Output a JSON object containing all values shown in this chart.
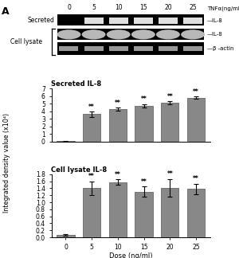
{
  "panel_label": "A",
  "gel_label_top": "TNFα(ng/ml)",
  "gel_doses": [
    "0",
    "5",
    "10",
    "15",
    "20",
    "25"
  ],
  "gel_row_labels_right": [
    "IL-8",
    "IL-8",
    "β -actin"
  ],
  "bar_color": "#888888",
  "bar_edge_color": "#555555",
  "secreted_title": "Secreted IL-8",
  "secreted_categories": [
    0,
    5,
    10,
    15,
    20,
    25
  ],
  "secreted_values": [
    0.05,
    3.6,
    4.3,
    4.7,
    5.1,
    5.8
  ],
  "secreted_errors": [
    0.05,
    0.35,
    0.2,
    0.25,
    0.2,
    0.18
  ],
  "secreted_ylim": [
    0,
    7
  ],
  "secreted_yticks": [
    0,
    1,
    2,
    3,
    4,
    5,
    6,
    7
  ],
  "lysate_title": "Cell lysate IL-8",
  "lysate_categories": [
    0,
    5,
    10,
    15,
    20,
    25
  ],
  "lysate_values": [
    0.07,
    1.4,
    1.58,
    1.3,
    1.42,
    1.38
  ],
  "lysate_errors": [
    0.03,
    0.2,
    0.08,
    0.15,
    0.25,
    0.15
  ],
  "lysate_ylim": [
    0,
    1.8
  ],
  "lysate_yticks": [
    0,
    0.2,
    0.4,
    0.6,
    0.8,
    1.0,
    1.2,
    1.4,
    1.6,
    1.8
  ],
  "xlabel": "Dose (ng/ml)",
  "ylabel": "Integrated density value (x10⁴)",
  "sig_label": "**",
  "background_color": "#ffffff",
  "text_color": "#000000"
}
